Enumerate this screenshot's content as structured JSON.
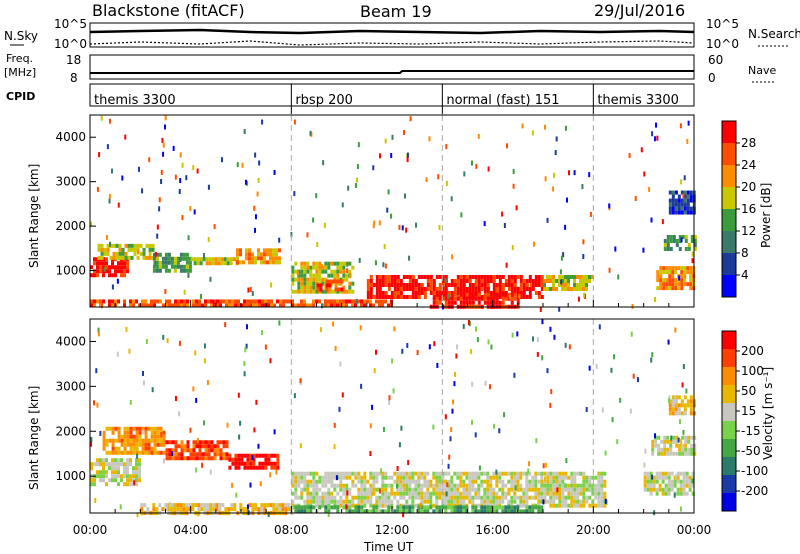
{
  "header": {
    "radar": "Blackstone (fitACF)",
    "beam": "Beam 19",
    "date": "29/Jul/2016"
  },
  "status_panels": {
    "nsky_label": "N.Sky",
    "nsearch_label": "N.Search",
    "freq_label_top": "Freq.",
    "freq_label_unit": "[MHz]",
    "nave_label": "Nave",
    "cpid_label": "CPID",
    "left_upper_ticks": [
      "10^5",
      "10^0"
    ],
    "right_upper_ticks": [
      "10^5",
      "10^0"
    ],
    "freq_ticks": [
      "18",
      "8"
    ],
    "nave_ticks": [
      "60",
      "0"
    ]
  },
  "cpid": {
    "segments": [
      {
        "label": "themis 3300",
        "start_hour": 0,
        "end_hour": 8
      },
      {
        "label": "rbsp 200",
        "start_hour": 8,
        "end_hour": 14
      },
      {
        "label": "normal (fast) 151",
        "start_hour": 14,
        "end_hour": 20
      },
      {
        "label": "themis 3300",
        "start_hour": 20,
        "end_hour": 24
      }
    ]
  },
  "axes": {
    "xlabel": "Time UT",
    "ylabel": "Slant Range [km]",
    "xticks": [
      "00:00",
      "04:00",
      "08:00",
      "12:00",
      "16:00",
      "20:00",
      "00:00"
    ],
    "yticks": [
      "1000",
      "2000",
      "3000",
      "4000"
    ]
  },
  "power_colorbar": {
    "label": "Power [dB]",
    "ticks": [
      "28",
      "24",
      "20",
      "16",
      "12",
      "8",
      "4"
    ],
    "colors": [
      "#0000ff",
      "#1c3a99",
      "#3b7a6b",
      "#3c9c3c",
      "#c8c800",
      "#ff8c00",
      "#ff4d00",
      "#ff0000"
    ]
  },
  "velocity_colorbar": {
    "label": "Velocity [m s⁻¹]",
    "ticks": [
      "200",
      "100",
      "50",
      "15",
      "-15",
      "-50",
      "-100",
      "-200"
    ],
    "colors": [
      "#0000e6",
      "#1a3aa8",
      "#2c7a6a",
      "#43a843",
      "#7ad24a",
      "#c8c8c0",
      "#e8b800",
      "#ff8c00",
      "#ff4000",
      "#ff0000"
    ]
  },
  "chart_data": {
    "type": "heatmap",
    "x_range_hours": [
      0,
      24
    ],
    "y_range_km": [
      180,
      4500
    ],
    "power_panel": {
      "regions": [
        {
          "t0": 0.0,
          "t1": 1.5,
          "r0": 900,
          "r1": 1300,
          "level": 7
        },
        {
          "t0": 0.3,
          "t1": 2.5,
          "r0": 1300,
          "r1": 1600,
          "level": 4
        },
        {
          "t0": 2.5,
          "t1": 4.0,
          "r0": 1000,
          "r1": 1400,
          "level": 3
        },
        {
          "t0": 4.0,
          "t1": 5.8,
          "r0": 1150,
          "r1": 1300,
          "level": 4
        },
        {
          "t0": 5.8,
          "t1": 7.5,
          "r0": 1200,
          "r1": 1500,
          "level": 5
        },
        {
          "t0": 8.0,
          "t1": 10.5,
          "r0": 500,
          "r1": 1200,
          "level": 4
        },
        {
          "t0": 9.0,
          "t1": 10.0,
          "r0": 600,
          "r1": 800,
          "level": 6
        },
        {
          "t0": 11.0,
          "t1": 18.0,
          "r0": 400,
          "r1": 900,
          "level": 7
        },
        {
          "t0": 13.5,
          "t1": 17.0,
          "r0": 200,
          "r1": 500,
          "level": 7
        },
        {
          "t0": 18.0,
          "t1": 20.0,
          "r0": 600,
          "r1": 900,
          "level": 4
        },
        {
          "t0": 0.0,
          "t1": 12.0,
          "r0": 180,
          "r1": 350,
          "level": 6
        },
        {
          "t0": 22.5,
          "t1": 24.0,
          "r0": 600,
          "r1": 1100,
          "level": 5
        },
        {
          "t0": 22.8,
          "t1": 24.0,
          "r0": 1500,
          "r1": 1800,
          "level": 3
        },
        {
          "t0": 23.0,
          "t1": 24.0,
          "r0": 2300,
          "r1": 2800,
          "level": 1
        }
      ]
    },
    "velocity_panel": {
      "regions": [
        {
          "t0": 0.0,
          "t1": 2.0,
          "r0": 800,
          "r1": 1400,
          "level": 5
        },
        {
          "t0": 0.5,
          "t1": 3.0,
          "r0": 1500,
          "r1": 2100,
          "level": 7
        },
        {
          "t0": 3.0,
          "t1": 5.5,
          "r0": 1400,
          "r1": 1800,
          "level": 8
        },
        {
          "t0": 5.5,
          "t1": 7.5,
          "r0": 1200,
          "r1": 1500,
          "level": 9
        },
        {
          "t0": 8.0,
          "t1": 20.5,
          "r0": 300,
          "r1": 1100,
          "level": 5
        },
        {
          "t0": 8.0,
          "t1": 18.0,
          "r0": 180,
          "r1": 350,
          "level": 3
        },
        {
          "t0": 2.0,
          "t1": 8.0,
          "r0": 180,
          "r1": 400,
          "level": 6
        },
        {
          "t0": 22.0,
          "t1": 24.0,
          "r0": 600,
          "r1": 1100,
          "level": 5
        },
        {
          "t0": 22.3,
          "t1": 24.0,
          "r0": 1500,
          "r1": 1900,
          "level": 5
        },
        {
          "t0": 23.0,
          "t1": 24.0,
          "r0": 2400,
          "r1": 2800,
          "level": 6
        }
      ]
    }
  }
}
